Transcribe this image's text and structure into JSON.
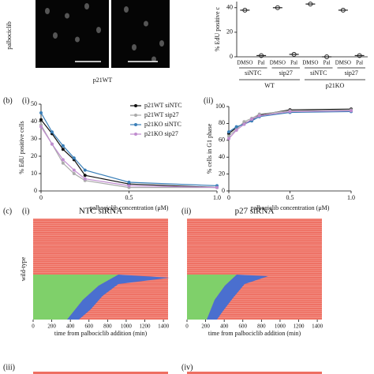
{
  "figure": {
    "panel_b": "(b)",
    "b_i": "(i)",
    "b_ii": "(ii)",
    "panel_c": "(c)",
    "c_i": "(i)",
    "c_ii": "(ii)",
    "c_iii": "(iii)",
    "c_iv": "(iv)",
    "image_row_label": "palbociclib",
    "image_column_label": "p21WT",
    "row_label": "wild-type"
  },
  "chart_data": [
    {
      "type": "dot",
      "ylabel": "% EdU positive c",
      "categories": [
        "DMSO",
        "Pal",
        "DMSO",
        "Pal",
        "DMSO",
        "Pal",
        "DMSO",
        "Pal"
      ],
      "values": [
        38,
        1,
        40,
        2,
        43,
        0,
        38,
        1
      ],
      "color": "#222222",
      "group_labels": [
        "siNTC",
        "sip27",
        "siNTC",
        "sip27"
      ],
      "super_labels": [
        "WT",
        "p21KO"
      ],
      "ylim": [
        0,
        45
      ],
      "yticks": [
        0,
        20,
        40
      ]
    },
    {
      "type": "line",
      "ylabel": "% EdU positive cells",
      "xlabel": "palbociclib concentration (μM)",
      "legend": "upper right",
      "x": [
        0,
        0.0625,
        0.125,
        0.1875,
        0.25,
        0.5,
        1.0
      ],
      "series": [
        {
          "name": "p21WT siNTC",
          "color": "#111111",
          "values": [
            41,
            33,
            24,
            18,
            9,
            4,
            2
          ]
        },
        {
          "name": "p21WT sip27",
          "color": "#aaaaaa",
          "values": [
            38,
            27,
            16,
            10,
            6,
            2,
            2
          ]
        },
        {
          "name": "p21KO siNTC",
          "color": "#3a7fb8",
          "values": [
            45,
            34,
            26,
            19,
            12,
            5,
            3
          ]
        },
        {
          "name": "p21KO sip27",
          "color": "#c08ccf",
          "values": [
            37,
            27,
            18,
            12,
            7,
            3,
            2
          ]
        }
      ],
      "xlim": [
        0,
        1
      ],
      "xticks": [
        0,
        0.5,
        {
          "value": 1,
          "label": "1.0"
        }
      ],
      "ylim": [
        0,
        50
      ],
      "yticks": [
        0,
        10,
        20,
        30,
        40,
        50
      ]
    },
    {
      "type": "line",
      "ylabel": "% cells in G1 phase",
      "xlabel": "palbociclib concentration (μM)",
      "x": [
        0,
        0.0625,
        0.125,
        0.1875,
        0.25,
        0.5,
        1.0
      ],
      "series": [
        {
          "name": "p21WT siNTC",
          "color": "#111111",
          "values": [
            68,
            75,
            80,
            84,
            90,
            96,
            97
          ]
        },
        {
          "name": "p21WT sip27",
          "color": "#aaaaaa",
          "values": [
            65,
            73,
            82,
            86,
            91,
            95,
            96
          ]
        },
        {
          "name": "p21KO siNTC",
          "color": "#3a7fb8",
          "values": [
            70,
            76,
            79,
            83,
            88,
            93,
            94
          ]
        },
        {
          "name": "p21KO sip27",
          "color": "#c08ccf",
          "values": [
            62,
            72,
            79,
            85,
            89,
            94,
            95
          ]
        }
      ],
      "xlim": [
        0,
        1
      ],
      "xticks": [
        0,
        0.5,
        {
          "value": 1,
          "label": "1.0"
        }
      ],
      "ylim": [
        0,
        100
      ],
      "yticks": [
        0,
        20,
        40,
        60,
        80,
        100
      ]
    },
    {
      "type": "raster",
      "title": "NTC siRNA",
      "xlabel": "time from palbociclib addition (min)",
      "xlim": [
        0,
        1450
      ],
      "xticks": [
        0,
        200,
        400,
        600,
        800,
        1000,
        1200,
        1400
      ]
    },
    {
      "type": "raster",
      "title": "p27 siRNA",
      "xlabel": "time from palbociclib addition (min)",
      "xlim": [
        0,
        1450
      ],
      "xticks": [
        0,
        200,
        400,
        600,
        800,
        1000,
        1200,
        1400
      ]
    }
  ]
}
